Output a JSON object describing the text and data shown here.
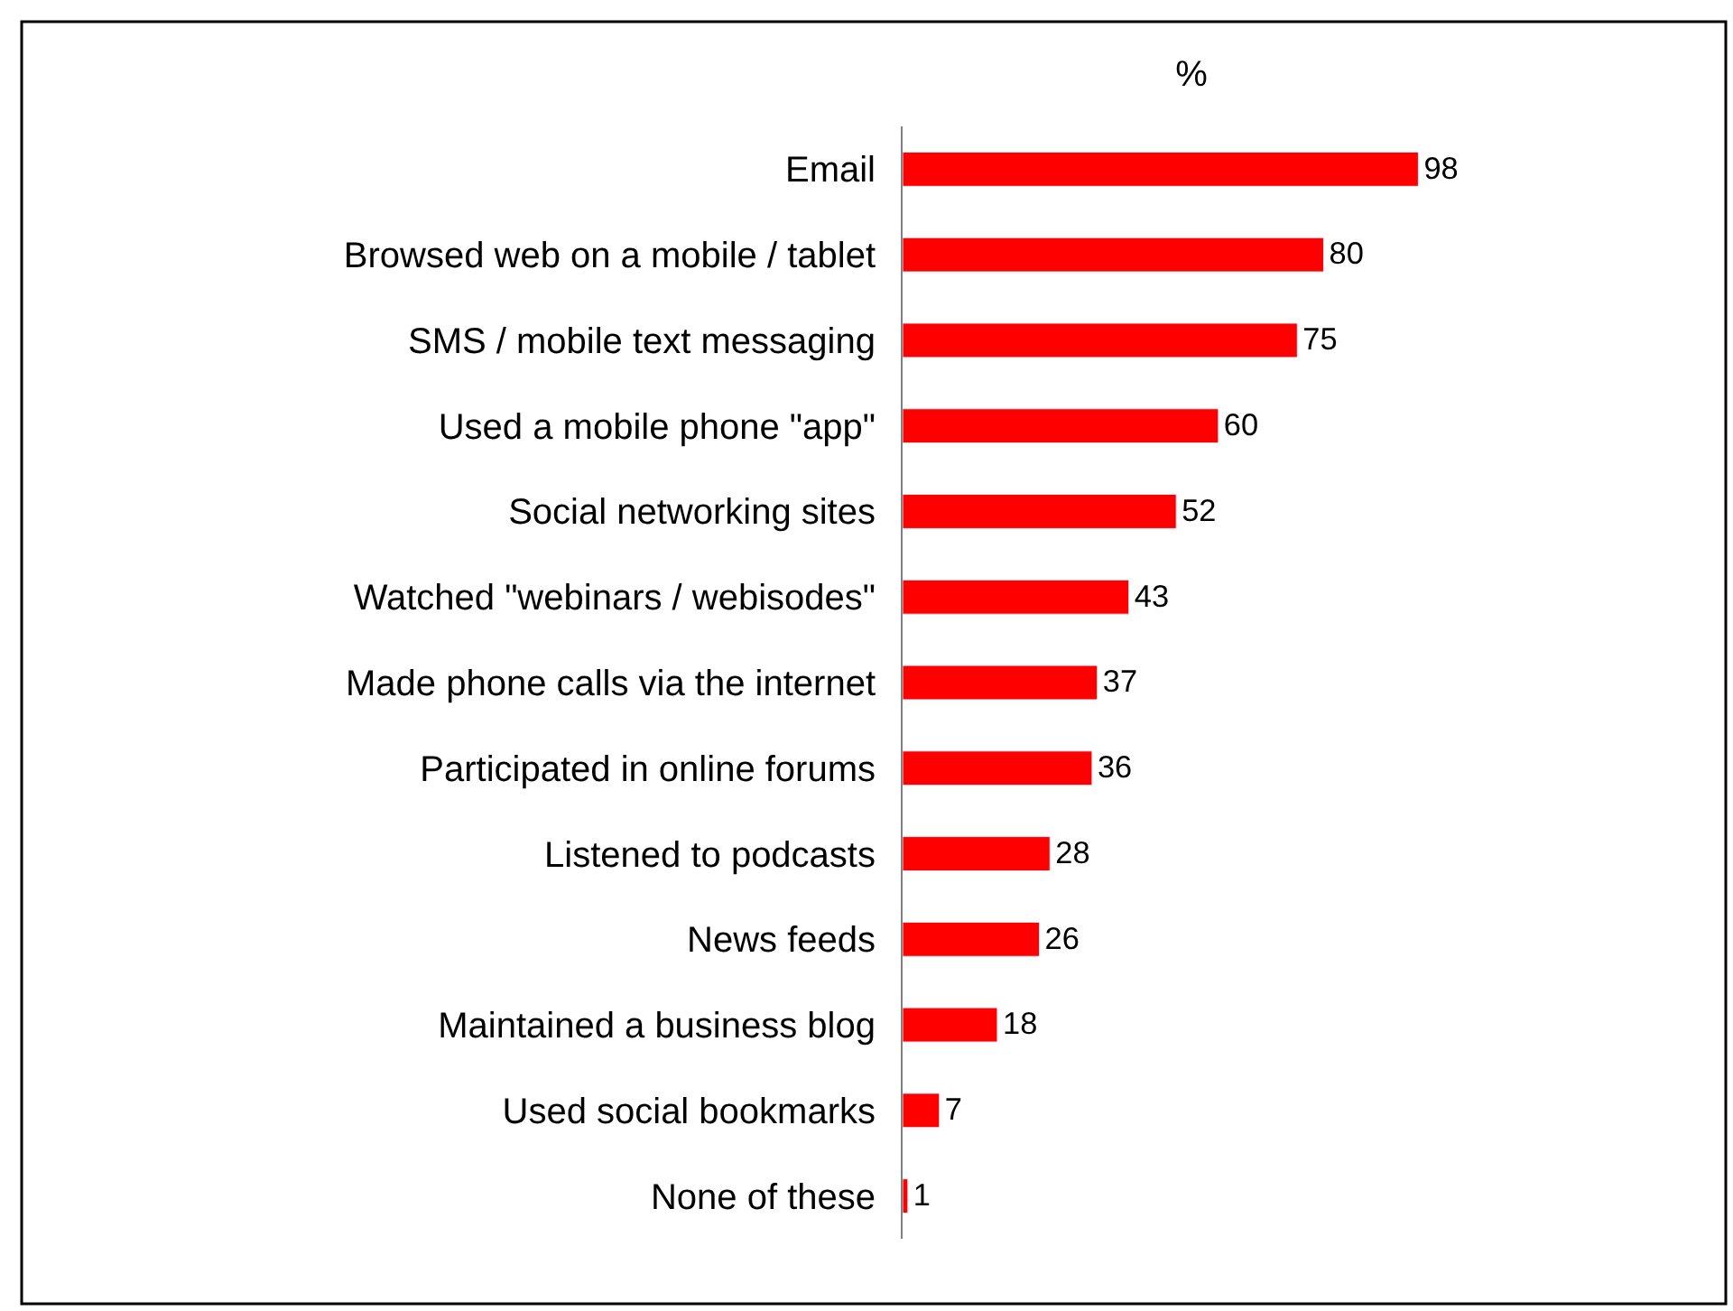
{
  "chart_data": {
    "type": "bar",
    "orientation": "horizontal",
    "xlabel": "%",
    "categories": [
      "Email",
      "Browsed web on a mobile / tablet",
      "SMS / mobile text messaging",
      "Used a mobile phone \"app\"",
      "Social networking sites",
      "Watched \"webinars / webisodes\"",
      "Made phone calls via the internet",
      "Participated in online forums",
      "Listened to podcasts",
      "News feeds",
      "Maintained a business blog",
      "Used social bookmarks",
      "None of these"
    ],
    "values": [
      98,
      80,
      75,
      60,
      52,
      43,
      37,
      36,
      28,
      26,
      18,
      7,
      1
    ],
    "color": "#ff0000",
    "data_labels": true,
    "legend": false
  }
}
